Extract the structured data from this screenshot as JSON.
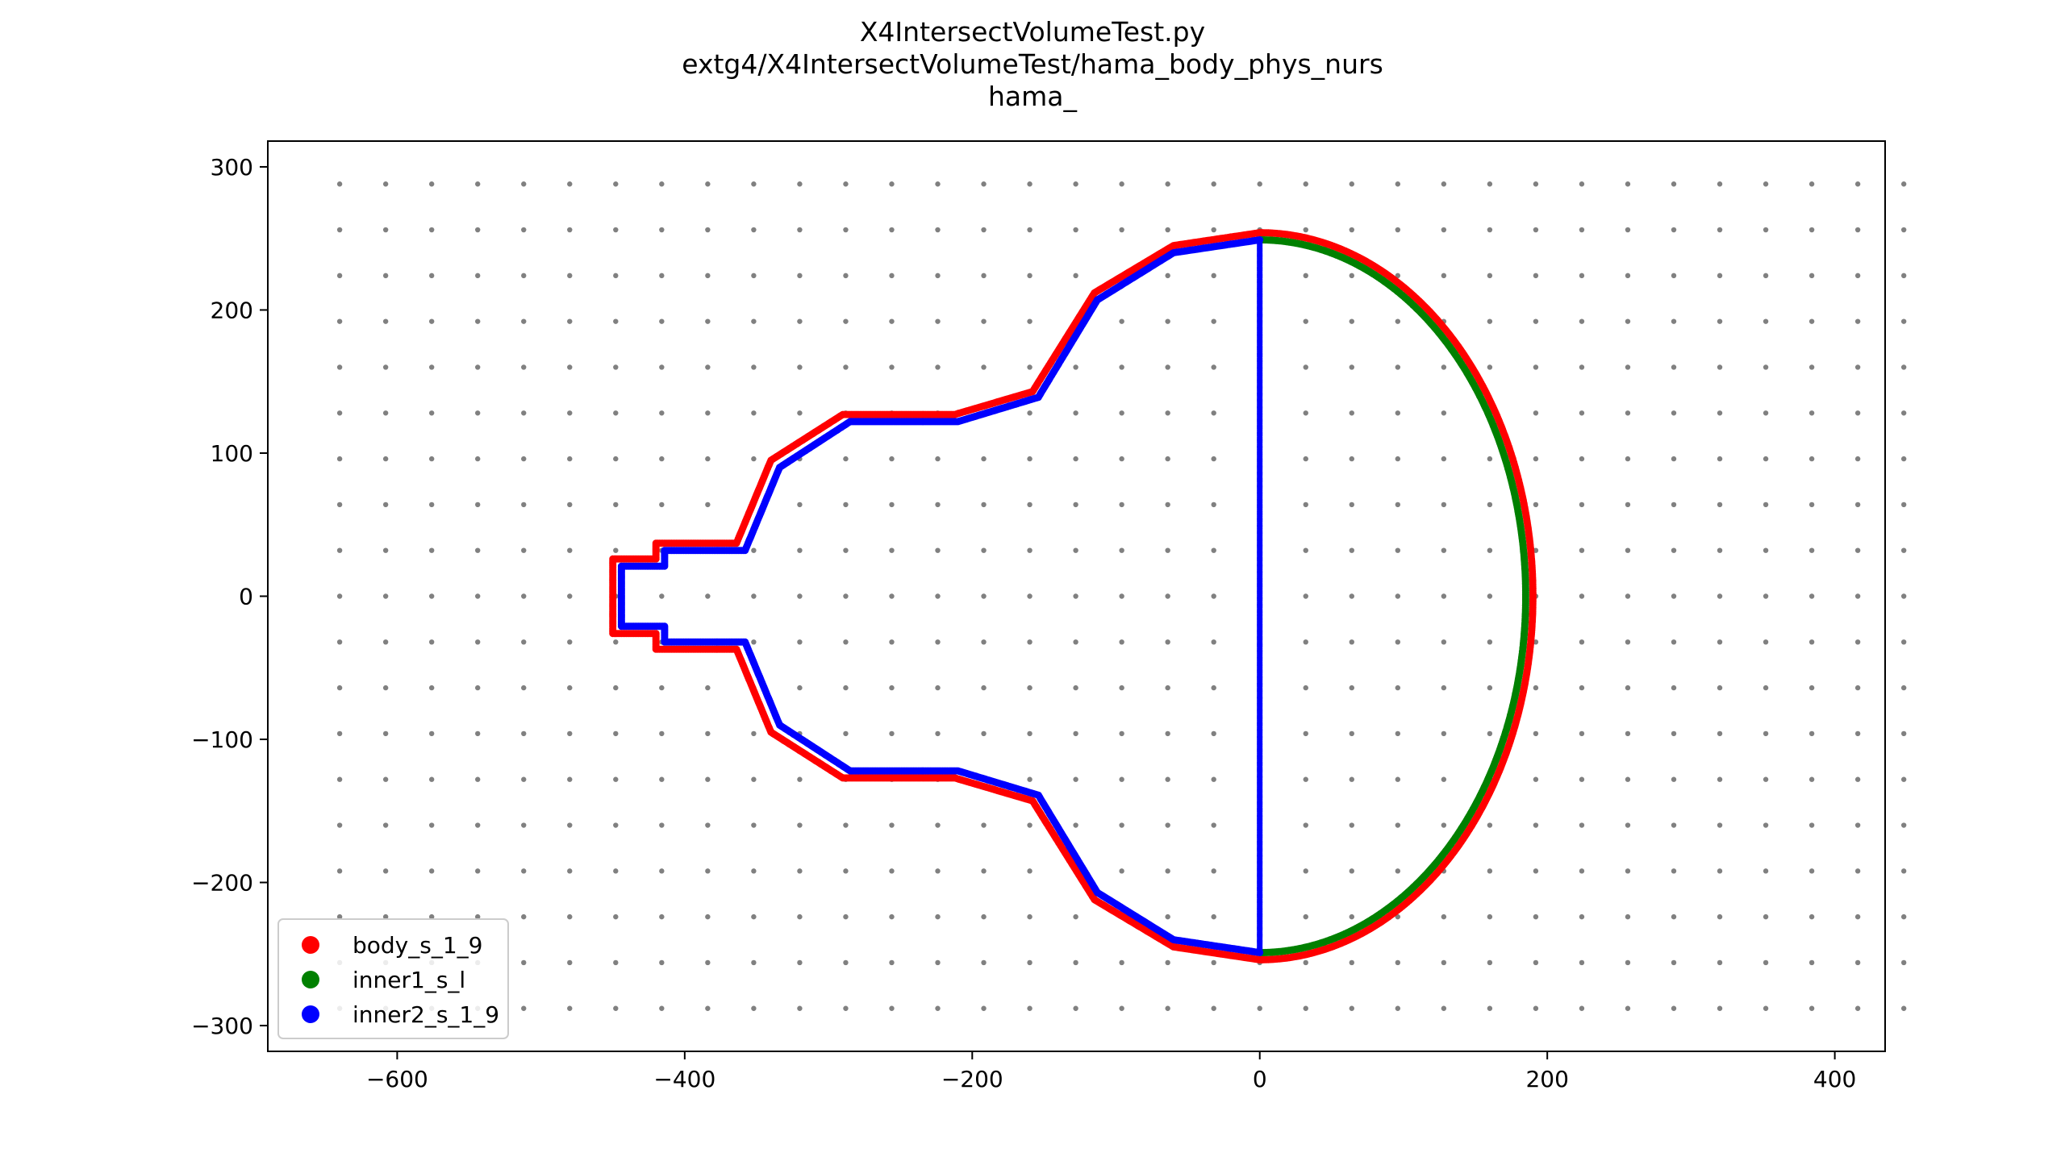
{
  "chart_data": {
    "type": "scatter",
    "title_lines": [
      "X4IntersectVolumeTest.py",
      "extg4/X4IntersectVolumeTest/hama_body_phys_nurs",
      "hama_"
    ],
    "xlim": [
      -690,
      435
    ],
    "ylim": [
      -318,
      318
    ],
    "xticks": [
      -600,
      -400,
      -200,
      0,
      200,
      400
    ],
    "xtick_labels": [
      "−600",
      "−400",
      "−200",
      "0",
      "200",
      "400"
    ],
    "yticks": [
      300,
      200,
      100,
      0,
      -100,
      -200,
      -300
    ],
    "ytick_labels": [
      "300",
      "200",
      "100",
      "0",
      "−100",
      "−200",
      "−300"
    ],
    "grid_points": {
      "x_start": -640,
      "x_step": 32,
      "x_count": 35,
      "y_start": -288,
      "y_step": 32,
      "y_count": 19,
      "color": "#808080"
    },
    "legend": {
      "location": "lower left"
    },
    "series": [
      {
        "name": "body_s_1_9",
        "color": "#ff0000",
        "outline": [
          [
            0,
            254
          ],
          [
            -60,
            245
          ],
          [
            -115,
            212
          ],
          [
            -158,
            143
          ],
          [
            -212,
            127
          ],
          [
            -290,
            127
          ],
          [
            -340,
            95
          ],
          [
            -364,
            37
          ],
          [
            -420,
            37
          ],
          [
            -420,
            26
          ],
          [
            -450,
            26
          ],
          [
            -450,
            -26
          ],
          [
            -420,
            -26
          ],
          [
            -420,
            -37
          ],
          [
            -364,
            -37
          ],
          [
            -340,
            -95
          ],
          [
            -290,
            -127
          ],
          [
            -212,
            -127
          ],
          [
            -158,
            -143
          ],
          [
            -115,
            -212
          ],
          [
            -60,
            -245
          ],
          [
            0,
            -254
          ]
        ],
        "arc": {
          "x0": 0,
          "rx": 190,
          "ry": 254
        }
      },
      {
        "name": "inner1_s_l",
        "color": "#008000",
        "arc": {
          "x0": 0,
          "rx": 185,
          "ry": 249
        }
      },
      {
        "name": "inner2_s_1_9",
        "color": "#0000ff",
        "outline": [
          [
            0,
            249
          ],
          [
            -60,
            240
          ],
          [
            -113,
            207
          ],
          [
            -154,
            139
          ],
          [
            -210,
            122
          ],
          [
            -285,
            122
          ],
          [
            -334,
            90
          ],
          [
            -358,
            32
          ],
          [
            -414,
            32
          ],
          [
            -414,
            21
          ],
          [
            -444,
            21
          ],
          [
            -444,
            -21
          ],
          [
            -414,
            -21
          ],
          [
            -414,
            -32
          ],
          [
            -358,
            -32
          ],
          [
            -334,
            -90
          ],
          [
            -285,
            -122
          ],
          [
            -210,
            -122
          ],
          [
            -154,
            -139
          ],
          [
            -113,
            -207
          ],
          [
            -60,
            -240
          ],
          [
            0,
            -249
          ]
        ],
        "vertical_line": {
          "x": 0,
          "y_from": -249,
          "y_to": 249
        }
      }
    ]
  }
}
